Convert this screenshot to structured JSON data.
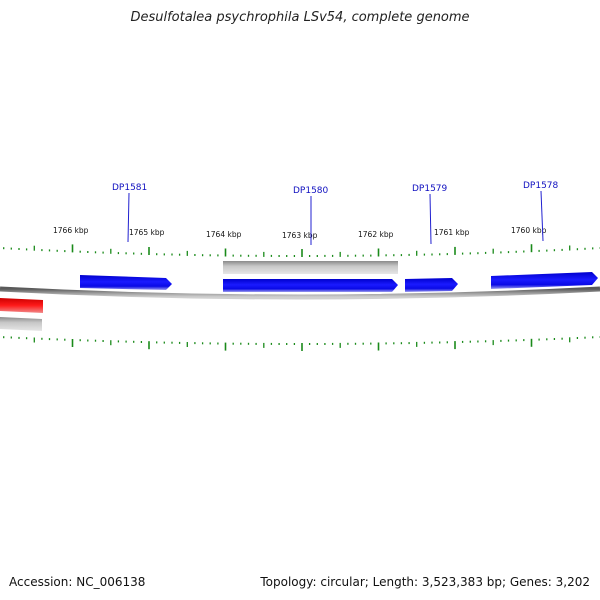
{
  "title": "Desulfotalea psychrophila LSv54, complete genome",
  "footer": {
    "accession": "Accession: NC_006138",
    "summary": "Topology: circular; Length: 3,523,383 bp; Genes: 3,202"
  },
  "colors": {
    "forward_gene": "#0a0ae6",
    "other_feature": "#b4b4b4",
    "highlight_gene": "#e60000",
    "backbone": "#7a7a7a",
    "tick": "#1a8a1a",
    "gene_label": "#1010c0"
  },
  "ruler": {
    "labels": [
      "1766 kbp",
      "1765 kbp",
      "1764 kbp",
      "1763 kbp",
      "1762 kbp",
      "1761 kbp",
      "1760 kbp"
    ]
  },
  "genes": [
    {
      "label": "DP1581"
    },
    {
      "label": "DP1580"
    },
    {
      "label": "DP1579"
    },
    {
      "label": "DP1578"
    }
  ]
}
